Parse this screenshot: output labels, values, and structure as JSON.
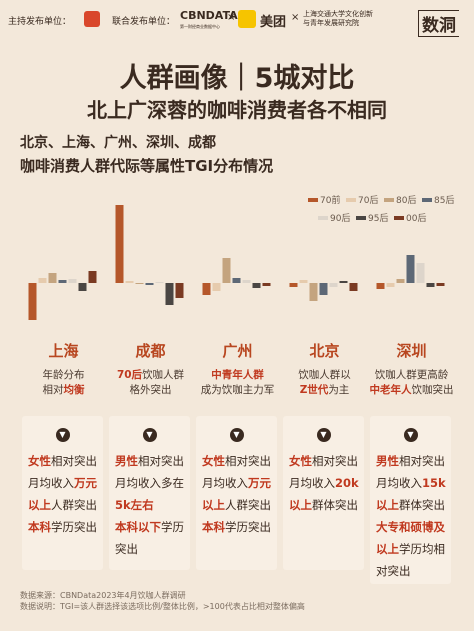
{
  "header": {
    "host_label": "主持发布单位：",
    "cohost_label": "联合发布单位：",
    "cbn": "CBNDATA",
    "cbn_sub": "第一财经商业数据中心",
    "meituan": "美团",
    "sjtu": [
      "上海交通大学文化创新",
      "与青年发展研究院"
    ],
    "brand": "数洞"
  },
  "title": {
    "line1": "人群画像｜5城对比",
    "line2": "北上广深蓉的咖啡消费者各不相同"
  },
  "subtitle": {
    "line1": "北京、上海、广州、深圳、成都",
    "line2": "咖啡消费人群代际等属性TGI分布情况"
  },
  "chart_data": {
    "type": "bar",
    "categories": [
      "上海",
      "成都",
      "广州",
      "北京",
      "深圳"
    ],
    "series": [
      {
        "name": "70前",
        "color": "#b5572a",
        "values": [
          -37,
          78,
          -12,
          -4,
          -6
        ]
      },
      {
        "name": "70后",
        "color": "#e6cbad",
        "values": [
          5,
          2,
          -8,
          3,
          -4
        ]
      },
      {
        "name": "80后",
        "color": "#c4a47f",
        "values": [
          10,
          -1,
          25,
          -18,
          4
        ]
      },
      {
        "name": "85后",
        "color": "#5d6876",
        "values": [
          3,
          -2,
          5,
          -12,
          28
        ]
      },
      {
        "name": "90后",
        "color": "#ddd5cb",
        "values": [
          4,
          1,
          3,
          -4,
          20
        ]
      },
      {
        "name": "95后",
        "color": "#4a4643",
        "values": [
          -8,
          -22,
          -5,
          2,
          -4
        ]
      },
      {
        "name": "00后",
        "color": "#7a3a22",
        "values": [
          12,
          -15,
          -3,
          -8,
          -3
        ]
      }
    ]
  },
  "cities": [
    {
      "desc": [
        [
          "年龄分布"
        ],
        [
          "相对",
          {
            "text": "均衡",
            "em": true
          }
        ]
      ],
      "card": [
        [
          {
            "text": "女性",
            "em": true
          },
          "相对突出"
        ],
        [
          "月均收入",
          {
            "text": "万元",
            "em": true
          }
        ],
        [
          {
            "text": "以上",
            "em": true
          },
          "人群突出"
        ],
        [
          {
            "text": "本科",
            "em": true
          },
          "学历突出"
        ]
      ]
    },
    {
      "desc": [
        [
          {
            "text": "70后",
            "em": true
          },
          "饮咖人群"
        ],
        [
          "格外突出"
        ]
      ],
      "card": [
        [
          {
            "text": "男性",
            "em": true
          },
          "相对突出"
        ],
        [
          "月均收入多在"
        ],
        [
          {
            "text": "5k左右",
            "em": true
          }
        ],
        [
          {
            "text": "本科以下",
            "em": true
          },
          "学历"
        ],
        [
          "突出"
        ]
      ]
    },
    {
      "desc": [
        [
          {
            "text": "中青年人群",
            "em": true
          }
        ],
        [
          "成为饮咖主力军"
        ]
      ],
      "card": [
        [
          {
            "text": "女性",
            "em": true
          },
          "相对突出"
        ],
        [
          "月均收入",
          {
            "text": "万元",
            "em": true
          }
        ],
        [
          {
            "text": "以上",
            "em": true
          },
          "人群突出"
        ],
        [
          {
            "text": "本科",
            "em": true
          },
          "学历突出"
        ]
      ]
    },
    {
      "desc": [
        [
          "饮咖人群以"
        ],
        [
          {
            "text": "Z世代",
            "em": true
          },
          "为主"
        ]
      ],
      "card": [
        [
          {
            "text": "女性",
            "em": true
          },
          "相对突出"
        ],
        [
          "月均收入",
          {
            "text": "20k",
            "em": true
          }
        ],
        [
          {
            "text": "以上",
            "em": true
          },
          "群体突出"
        ]
      ]
    },
    {
      "desc": [
        [
          "饮咖人群更高龄"
        ],
        [
          {
            "text": "中老年人",
            "em": true
          },
          "饮咖突出"
        ]
      ],
      "card": [
        [
          {
            "text": "男性",
            "em": true
          },
          "相对突出"
        ],
        [
          "月均收入",
          {
            "text": "15k",
            "em": true
          }
        ],
        [
          {
            "text": "以上",
            "em": true
          },
          "群体突出"
        ],
        [
          {
            "text": "大专和硕博及",
            "em": true
          }
        ],
        [
          {
            "text": "以上",
            "em": true
          },
          "学历均相"
        ],
        [
          "对突出"
        ]
      ]
    }
  ],
  "footer": [
    "数据来源：CBNData2023年4月饮咖人群调研",
    "数据说明：TGI=该人群选择该选项比例/整体比例，>100代表占比相对整体偏高"
  ]
}
